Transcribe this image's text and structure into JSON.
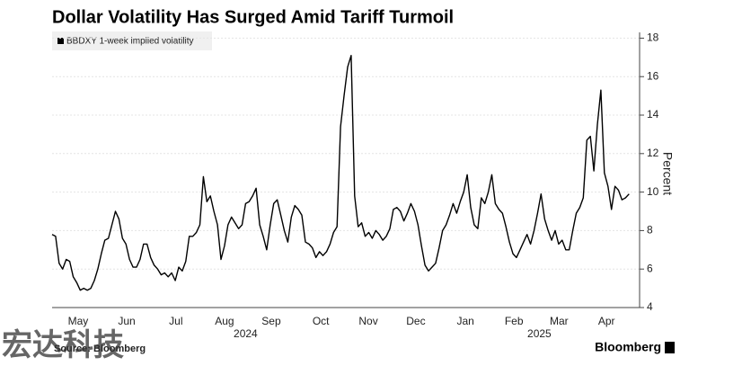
{
  "chart_data": {
    "type": "line",
    "title": "Dollar Volatility Has Surged Amid Tariff Turmoil",
    "y_axis_label": "Percent",
    "source": "Source: Bloomberg",
    "brand": "Bloomberg",
    "watermark": "宏达科技",
    "series": [
      {
        "name": "BBDXY 1-week implied volatility",
        "color": "#000000",
        "values": [
          7.8,
          7.7,
          6.3,
          6.0,
          6.5,
          6.4,
          5.6,
          5.3,
          4.9,
          5.0,
          4.9,
          5.0,
          5.4,
          6.0,
          6.8,
          7.5,
          7.6,
          8.3,
          9.0,
          8.6,
          7.6,
          7.3,
          6.5,
          6.1,
          6.1,
          6.5,
          7.3,
          7.3,
          6.6,
          6.2,
          6.0,
          5.7,
          5.8,
          5.6,
          5.8,
          5.4,
          6.1,
          5.9,
          6.4,
          7.7,
          7.7,
          7.9,
          8.3,
          10.8,
          9.5,
          9.8,
          9.0,
          8.3,
          6.5,
          7.2,
          8.3,
          8.7,
          8.4,
          8.1,
          8.3,
          9.4,
          9.5,
          9.8,
          10.2,
          8.3,
          7.7,
          7.0,
          8.3,
          9.4,
          9.6,
          8.8,
          8.0,
          7.4,
          8.7,
          9.3,
          9.1,
          8.8,
          7.4,
          7.3,
          7.1,
          6.6,
          6.9,
          6.7,
          6.9,
          7.3,
          7.9,
          8.2,
          13.4,
          15.0,
          16.5,
          17.1,
          9.8,
          8.2,
          8.4,
          7.7,
          7.9,
          7.6,
          8.0,
          7.8,
          7.5,
          7.7,
          8.1,
          9.1,
          9.2,
          9.0,
          8.5,
          8.9,
          9.4,
          9.0,
          8.3,
          7.2,
          6.2,
          5.9,
          6.1,
          6.3,
          7.1,
          8.0,
          8.3,
          8.8,
          9.4,
          8.9,
          9.5,
          10.0,
          10.9,
          9.2,
          8.3,
          8.1,
          9.7,
          9.4,
          10.0,
          10.9,
          9.4,
          9.1,
          8.9,
          8.2,
          7.4,
          6.8,
          6.6,
          7.0,
          7.4,
          7.8,
          7.3,
          8.0,
          8.9,
          9.9,
          8.6,
          8.0,
          7.5,
          8.0,
          7.3,
          7.5,
          7.0,
          7.0,
          8.0,
          8.9,
          9.2,
          9.7,
          12.7,
          12.9,
          11.1,
          13.5,
          15.3,
          11.0,
          10.3,
          9.1,
          10.3,
          10.1,
          9.6,
          9.7,
          9.9
        ]
      }
    ],
    "xlim": [
      0,
      167
    ],
    "xticks": [
      {
        "value": 7.4,
        "label": "May"
      },
      {
        "value": 21.2,
        "label": "Jun"
      },
      {
        "value": 35.2,
        "label": "Jul"
      },
      {
        "value": 49,
        "label": "Aug"
      },
      {
        "value": 62.3,
        "label": "Sep"
      },
      {
        "value": 76.4,
        "label": "Oct"
      },
      {
        "value": 89.9,
        "label": "Nov"
      },
      {
        "value": 103.4,
        "label": "Dec"
      },
      {
        "value": 117.5,
        "label": "Jan"
      },
      {
        "value": 131.3,
        "label": "Feb"
      },
      {
        "value": 144.1,
        "label": "Mar"
      },
      {
        "value": 157.6,
        "label": "Apr"
      }
    ],
    "year_ticks": [
      {
        "value": 55,
        "label": "2024"
      },
      {
        "value": 138.5,
        "label": "2025"
      }
    ],
    "ylim": [
      4,
      18.3
    ],
    "yticks": [
      4,
      6,
      8,
      10,
      12,
      14,
      16,
      18
    ],
    "grid": true,
    "legend": "top-left"
  }
}
